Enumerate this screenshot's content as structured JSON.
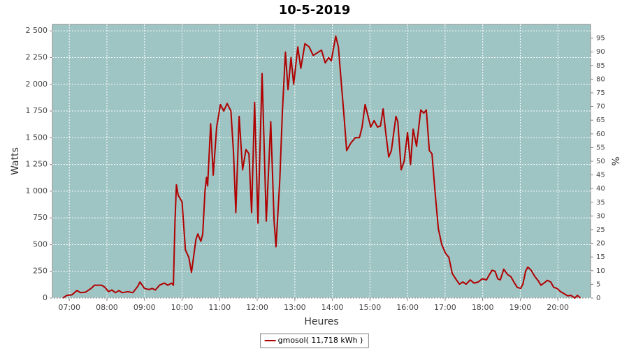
{
  "chart_data": {
    "type": "line",
    "title": "10-5-2019",
    "x_label": "Heures",
    "y_label": "Watts",
    "y2_label": "%",
    "xlim": [
      6.55,
      20.87
    ],
    "xticks": [
      {
        "value": 7,
        "label": "07:00"
      },
      {
        "value": 8,
        "label": "08:00"
      },
      {
        "value": 9,
        "label": "09:00"
      },
      {
        "value": 10,
        "label": "10:00"
      },
      {
        "value": 11,
        "label": "11:00"
      },
      {
        "value": 12,
        "label": "12:00"
      },
      {
        "value": 13,
        "label": "13:00"
      },
      {
        "value": 14,
        "label": "14:00"
      },
      {
        "value": 15,
        "label": "15:00"
      },
      {
        "value": 16,
        "label": "16:00"
      },
      {
        "value": 17,
        "label": "17:00"
      },
      {
        "value": 18,
        "label": "18:00"
      },
      {
        "value": 19,
        "label": "19:00"
      },
      {
        "value": 20,
        "label": "20:00"
      }
    ],
    "ylim": [
      0,
      2560
    ],
    "yticks": [
      0,
      250,
      500,
      750,
      {
        "value": 1000,
        "label": "1 000"
      },
      {
        "value": 1250,
        "label": "1 250"
      },
      {
        "value": 1500,
        "label": "1 500"
      },
      {
        "value": 1750,
        "label": "1 750"
      },
      {
        "value": 2000,
        "label": "2 000"
      },
      {
        "value": 2250,
        "label": "2 250"
      },
      {
        "value": 2500,
        "label": "2 500"
      }
    ],
    "y2lim": [
      0,
      100
    ],
    "y2ticks": [
      0,
      5,
      10,
      15,
      20,
      25,
      30,
      35,
      40,
      45,
      50,
      55,
      60,
      65,
      70,
      75,
      80,
      85,
      90,
      95
    ],
    "grid": true,
    "plot_background": "#9fc4c4",
    "legend": "bottom",
    "x": [
      6.83,
      6.93,
      7.07,
      7.2,
      7.3,
      7.43,
      7.58,
      7.67,
      7.86,
      7.95,
      8.04,
      8.13,
      8.23,
      8.32,
      8.41,
      8.56,
      8.69,
      8.82,
      8.88,
      9.0,
      9.12,
      9.21,
      9.29,
      9.4,
      9.53,
      9.62,
      9.72,
      9.77,
      9.81,
      9.85,
      9.9,
      10.0,
      10.09,
      10.18,
      10.25,
      10.37,
      10.42,
      10.5,
      10.55,
      10.61,
      10.65,
      10.68,
      10.76,
      10.83,
      10.92,
      11.02,
      11.11,
      11.2,
      11.3,
      11.37,
      11.43,
      11.52,
      11.61,
      11.7,
      11.78,
      11.85,
      11.93,
      12.02,
      12.13,
      12.24,
      12.36,
      12.45,
      12.5,
      12.6,
      12.67,
      12.75,
      12.82,
      12.9,
      12.97,
      13.08,
      13.16,
      13.27,
      13.38,
      13.49,
      13.62,
      13.71,
      13.81,
      13.9,
      13.97,
      14.09,
      14.16,
      14.24,
      14.31,
      14.38,
      14.49,
      14.61,
      14.72,
      14.79,
      14.87,
      14.95,
      15.02,
      15.11,
      15.2,
      15.28,
      15.35,
      15.42,
      15.5,
      15.57,
      15.69,
      15.74,
      15.83,
      15.91,
      16.0,
      16.08,
      16.15,
      16.24,
      16.35,
      16.43,
      16.5,
      16.58,
      16.65,
      16.73,
      16.82,
      16.91,
      17.01,
      17.1,
      17.19,
      17.28,
      17.38,
      17.47,
      17.56,
      17.67,
      17.77,
      17.88,
      17.99,
      18.1,
      18.18,
      18.25,
      18.33,
      18.4,
      18.47,
      18.56,
      18.66,
      18.75,
      18.83,
      18.92,
      19.01,
      19.07,
      19.14,
      19.2,
      19.29,
      19.39,
      19.48,
      19.55,
      19.63,
      19.72,
      19.81,
      19.89,
      19.98,
      20.07,
      20.17,
      20.26,
      20.35,
      20.45,
      20.52,
      20.6
    ],
    "series": [
      {
        "name": "gmosol( 11,718 kWh )",
        "color": "#b00000",
        "values": [
          0,
          25,
          30,
          70,
          50,
          55,
          90,
          120,
          120,
          100,
          60,
          75,
          50,
          70,
          50,
          60,
          50,
          110,
          150,
          90,
          80,
          90,
          75,
          120,
          140,
          120,
          140,
          120,
          700,
          1060,
          960,
          900,
          450,
          380,
          240,
          550,
          600,
          530,
          600,
          1000,
          1130,
          1050,
          1630,
          1150,
          1600,
          1810,
          1750,
          1820,
          1750,
          1350,
          800,
          1700,
          1200,
          1390,
          1350,
          800,
          1830,
          700,
          2100,
          720,
          1650,
          720,
          480,
          1100,
          1750,
          2300,
          1950,
          2250,
          2000,
          2350,
          2150,
          2380,
          2350,
          2270,
          2300,
          2320,
          2200,
          2250,
          2220,
          2450,
          2350,
          2000,
          1700,
          1380,
          1450,
          1500,
          1500,
          1600,
          1810,
          1700,
          1600,
          1660,
          1600,
          1610,
          1770,
          1550,
          1320,
          1380,
          1700,
          1650,
          1200,
          1280,
          1550,
          1250,
          1580,
          1420,
          1760,
          1730,
          1760,
          1380,
          1350,
          1000,
          650,
          500,
          420,
          380,
          230,
          180,
          130,
          150,
          130,
          170,
          140,
          150,
          180,
          170,
          220,
          260,
          250,
          180,
          170,
          270,
          220,
          200,
          150,
          100,
          90,
          130,
          250,
          290,
          260,
          200,
          160,
          120,
          140,
          165,
          150,
          100,
          90,
          60,
          40,
          20,
          25,
          0,
          25,
          0
        ]
      }
    ]
  }
}
